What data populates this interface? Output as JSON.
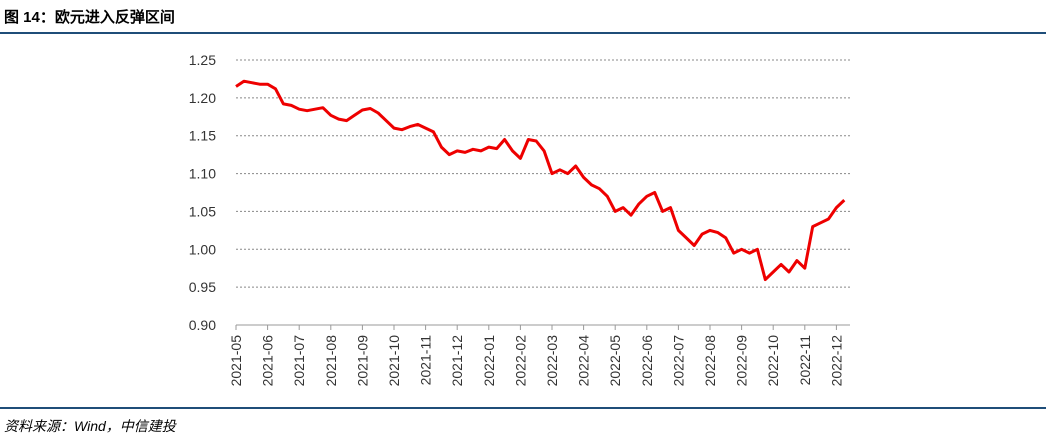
{
  "title": "图 14：欧元进入反弹区间",
  "source": "资料来源：Wind，中信建投",
  "chart_data": {
    "type": "line",
    "x": [
      "2021-05",
      "2021-05",
      "2021-05",
      "2021-05",
      "2021-06",
      "2021-06",
      "2021-06",
      "2021-06",
      "2021-07",
      "2021-07",
      "2021-07",
      "2021-07",
      "2021-08",
      "2021-08",
      "2021-08",
      "2021-08",
      "2021-09",
      "2021-09",
      "2021-09",
      "2021-09",
      "2021-10",
      "2021-10",
      "2021-10",
      "2021-10",
      "2021-11",
      "2021-11",
      "2021-11",
      "2021-11",
      "2021-12",
      "2021-12",
      "2021-12",
      "2021-12",
      "2022-01",
      "2022-01",
      "2022-01",
      "2022-01",
      "2022-02",
      "2022-02",
      "2022-02",
      "2022-02",
      "2022-03",
      "2022-03",
      "2022-03",
      "2022-03",
      "2022-04",
      "2022-04",
      "2022-04",
      "2022-04",
      "2022-05",
      "2022-05",
      "2022-05",
      "2022-05",
      "2022-06",
      "2022-06",
      "2022-06",
      "2022-06",
      "2022-07",
      "2022-07",
      "2022-07",
      "2022-07",
      "2022-08",
      "2022-08",
      "2022-08",
      "2022-08",
      "2022-09",
      "2022-09",
      "2022-09",
      "2022-09",
      "2022-10",
      "2022-10",
      "2022-10",
      "2022-10",
      "2022-11",
      "2022-11",
      "2022-11",
      "2022-11",
      "2022-12",
      "2022-12"
    ],
    "series": [
      {
        "color": "#ee0000",
        "values": [
          1.215,
          1.222,
          1.22,
          1.218,
          1.218,
          1.212,
          1.192,
          1.19,
          1.185,
          1.183,
          1.185,
          1.187,
          1.177,
          1.172,
          1.17,
          1.177,
          1.184,
          1.186,
          1.18,
          1.17,
          1.16,
          1.158,
          1.162,
          1.165,
          1.16,
          1.155,
          1.135,
          1.125,
          1.13,
          1.128,
          1.132,
          1.13,
          1.135,
          1.133,
          1.145,
          1.13,
          1.12,
          1.145,
          1.143,
          1.13,
          1.1,
          1.105,
          1.1,
          1.11,
          1.095,
          1.085,
          1.08,
          1.07,
          1.05,
          1.055,
          1.045,
          1.06,
          1.07,
          1.075,
          1.05,
          1.055,
          1.025,
          1.015,
          1.005,
          1.02,
          1.025,
          1.022,
          1.015,
          0.995,
          1.0,
          0.995,
          1.0,
          0.96,
          0.97,
          0.98,
          0.97,
          0.985,
          0.975,
          1.03,
          1.035,
          1.04,
          1.055,
          1.065
        ]
      }
    ],
    "xticks": [
      "2021-05",
      "2021-06",
      "2021-07",
      "2021-08",
      "2021-09",
      "2021-10",
      "2021-11",
      "2021-12",
      "2022-01",
      "2022-02",
      "2022-03",
      "2022-04",
      "2022-05",
      "2022-06",
      "2022-07",
      "2022-08",
      "2022-09",
      "2022-10",
      "2022-11",
      "2022-12"
    ],
    "ylim": [
      0.9,
      1.25
    ],
    "yticks": [
      {
        "value": 0.9,
        "label": "0.90"
      },
      0.95,
      {
        "value": 1.0,
        "label": "1.00"
      },
      1.05,
      {
        "value": 1.1,
        "label": "1.10"
      },
      1.15,
      {
        "value": 1.2,
        "label": "1.20"
      },
      1.25
    ],
    "grid": true
  }
}
